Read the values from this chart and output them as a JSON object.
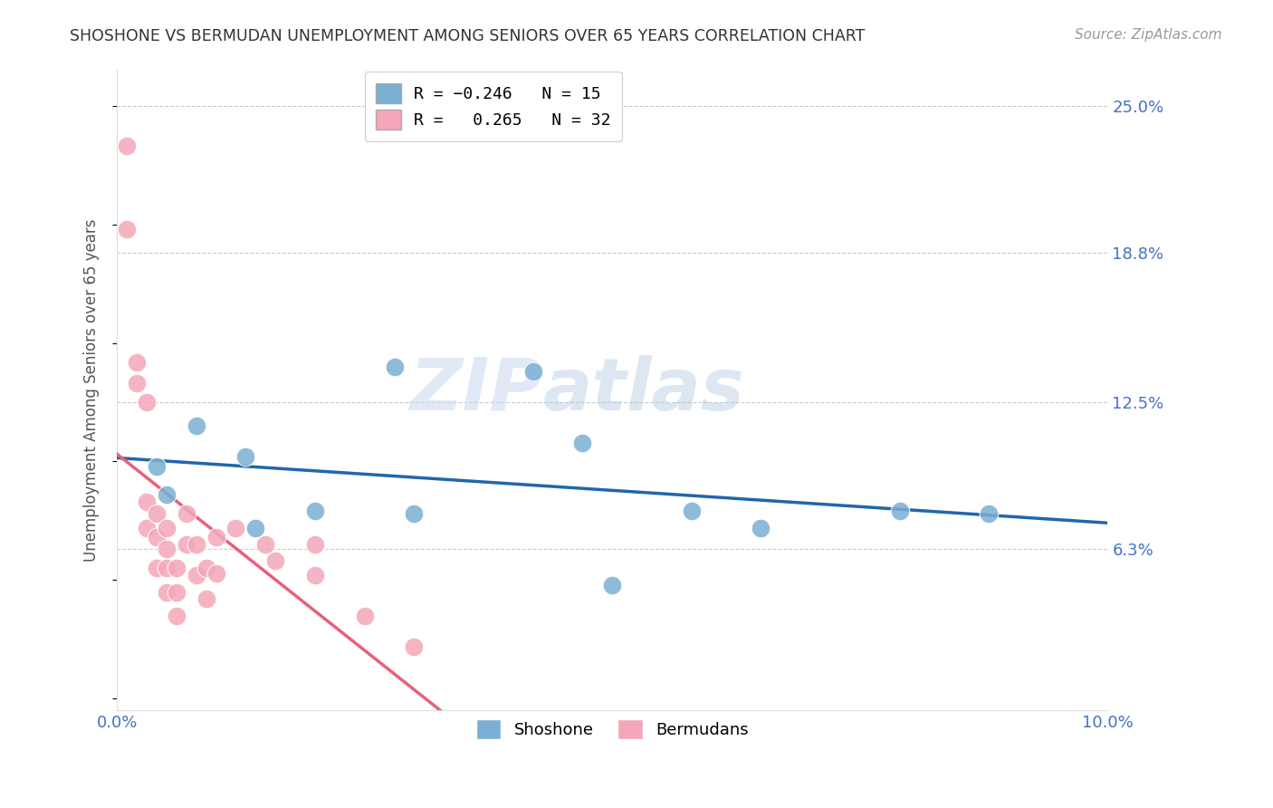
{
  "title": "SHOSHONE VS BERMUDAN UNEMPLOYMENT AMONG SENIORS OVER 65 YEARS CORRELATION CHART",
  "source": "Source: ZipAtlas.com",
  "ylabel": "Unemployment Among Seniors over 65 years",
  "xlim": [
    0.0,
    0.1
  ],
  "ylim": [
    -0.005,
    0.265
  ],
  "yticks_right": [
    0.0,
    0.063,
    0.125,
    0.188,
    0.25
  ],
  "ytick_labels_right": [
    "",
    "6.3%",
    "12.5%",
    "18.8%",
    "25.0%"
  ],
  "grid_yticks": [
    0.063,
    0.125,
    0.188,
    0.25
  ],
  "shoshone_color": "#7bafd4",
  "bermudans_color": "#f4a7b9",
  "shoshone_line_color": "#2166ac",
  "bermudans_line_color": "#e8607a",
  "shoshone_R": -0.246,
  "shoshone_N": 15,
  "bermudans_R": 0.265,
  "bermudans_N": 32,
  "watermark_zip": "ZIP",
  "watermark_atlas": "atlas",
  "shoshone_x": [
    0.004,
    0.005,
    0.008,
    0.013,
    0.014,
    0.02,
    0.028,
    0.03,
    0.042,
    0.047,
    0.05,
    0.058,
    0.065,
    0.079,
    0.088
  ],
  "shoshone_y": [
    0.098,
    0.086,
    0.115,
    0.102,
    0.072,
    0.079,
    0.14,
    0.078,
    0.138,
    0.108,
    0.048,
    0.079,
    0.072,
    0.079,
    0.078
  ],
  "bermudans_x": [
    0.001,
    0.001,
    0.002,
    0.002,
    0.003,
    0.003,
    0.003,
    0.004,
    0.004,
    0.004,
    0.005,
    0.005,
    0.005,
    0.005,
    0.006,
    0.006,
    0.006,
    0.007,
    0.007,
    0.008,
    0.008,
    0.009,
    0.009,
    0.01,
    0.01,
    0.012,
    0.015,
    0.016,
    0.02,
    0.02,
    0.025,
    0.03
  ],
  "bermudans_y": [
    0.233,
    0.198,
    0.142,
    0.133,
    0.125,
    0.083,
    0.072,
    0.078,
    0.068,
    0.055,
    0.072,
    0.063,
    0.055,
    0.045,
    0.055,
    0.045,
    0.035,
    0.078,
    0.065,
    0.065,
    0.052,
    0.055,
    0.042,
    0.068,
    0.053,
    0.072,
    0.065,
    0.058,
    0.065,
    0.052,
    0.035,
    0.022
  ],
  "title_color": "#333333",
  "axis_label_color": "#555555",
  "tick_color": "#4472c4",
  "background_color": "#ffffff",
  "legend_shoshone_label": "Shoshone",
  "legend_bermudans_label": "Bermudans"
}
